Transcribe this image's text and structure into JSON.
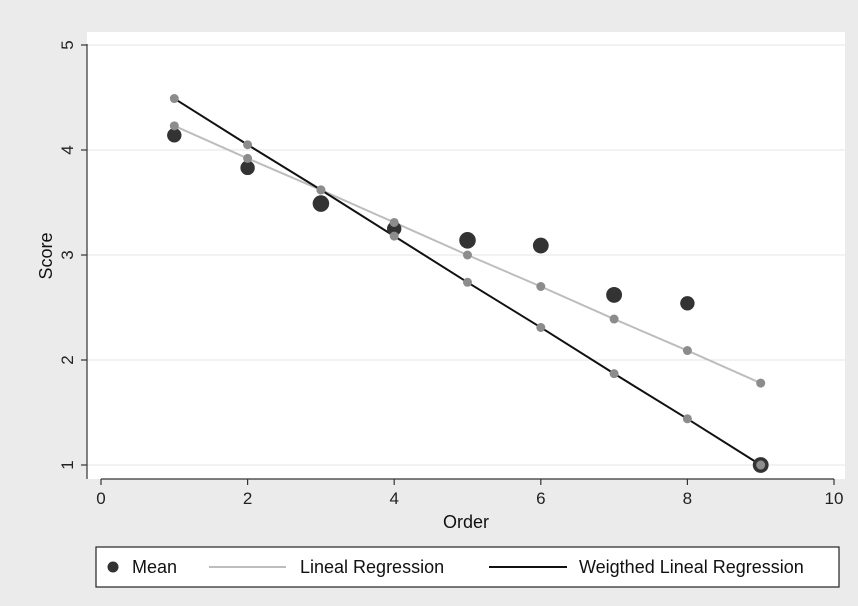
{
  "chart_data": {
    "type": "scatter",
    "title": "",
    "xlabel": "Order",
    "ylabel": "Score",
    "xlim": [
      0,
      10
    ],
    "ylim": [
      1,
      5
    ],
    "xticks": [
      0,
      2,
      4,
      6,
      8,
      10
    ],
    "yticks": [
      1,
      2,
      3,
      4,
      5
    ],
    "grid": true,
    "legend_position": "bottom",
    "colors": {
      "mean": "#333333",
      "lineal": "#bdbdbd",
      "lineal_points": "#8c8c8c",
      "weighted": "#111111",
      "weighted_points": "#8c8c8c",
      "plot_background": "#ffffff",
      "outer_background": "#ebebeb"
    },
    "series": [
      {
        "name": "Mean",
        "kind": "points",
        "x": [
          1,
          2,
          3,
          4,
          5,
          6,
          7,
          8,
          9
        ],
        "y": [
          4.14,
          3.83,
          3.49,
          3.25,
          3.14,
          3.09,
          2.62,
          2.54,
          1.0
        ],
        "size": [
          1.0,
          1.0,
          1.15,
          1.0,
          1.15,
          1.1,
          1.1,
          1.0,
          1.1
        ]
      },
      {
        "name": "Lineal Regression",
        "kind": "line",
        "x": [
          1,
          2,
          3,
          4,
          5,
          6,
          7,
          8,
          9
        ],
        "y": [
          4.23,
          3.92,
          3.62,
          3.31,
          3.0,
          2.7,
          2.39,
          2.09,
          1.78
        ]
      },
      {
        "name": "Weigthed Lineal Regression",
        "kind": "line",
        "x": [
          1,
          2,
          3,
          4,
          5,
          6,
          7,
          8,
          9
        ],
        "y": [
          4.49,
          4.05,
          3.62,
          3.18,
          2.74,
          2.31,
          1.87,
          1.44,
          1.0
        ]
      }
    ]
  },
  "legend": {
    "items": [
      {
        "label": "Mean",
        "kind": "point"
      },
      {
        "label": "Lineal Regression",
        "kind": "light-line"
      },
      {
        "label": "Weigthed Lineal Regression",
        "kind": "dark-line"
      }
    ]
  }
}
